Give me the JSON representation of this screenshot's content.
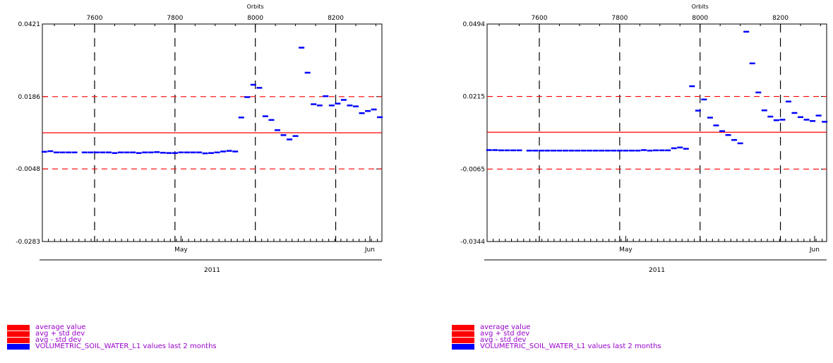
{
  "chart_data": [
    {
      "type": "scatter",
      "xlabel_top": "Orbits",
      "top_ticks": [
        "7600",
        "7800",
        "8000",
        "8200"
      ],
      "top_tick_values": [
        7600,
        7800,
        8000,
        8200
      ],
      "bottom_tick_labels": [
        "May",
        "Jun"
      ],
      "bottom_tick_values": [
        7815,
        8285
      ],
      "year_label": "2011",
      "xlim": [
        7470,
        8315
      ],
      "ylim": [
        -0.0283,
        0.0421
      ],
      "ytick_labels": [
        "0.0421",
        "0.0186",
        "-0.0048",
        "-0.0283"
      ],
      "ytick_values": [
        0.0421,
        0.0186,
        -0.0048,
        -0.0283
      ],
      "average": 0.0069,
      "avg_plus_std": 0.0186,
      "avg_minus_std": -0.0048,
      "series": [
        {
          "x": [
            7475,
            7490,
            7505,
            7520,
            7535,
            7550,
            7575,
            7590,
            7605,
            7620,
            7635,
            7650,
            7665,
            7680,
            7695,
            7710,
            7725,
            7740,
            7755,
            7770,
            7785,
            7800,
            7815,
            7830,
            7845,
            7860,
            7875,
            7890,
            7905,
            7920,
            7935,
            7950,
            7965,
            7980,
            7995,
            8010,
            8025,
            8040,
            8055,
            8070,
            8085,
            8100,
            8115,
            8130,
            8145,
            8160,
            8175,
            8190,
            8205,
            8220,
            8235,
            8250,
            8265,
            8280,
            8295,
            8310
          ],
          "y": [
            0.0008,
            0.001,
            0.0006,
            0.0006,
            0.0006,
            0.0006,
            0.0006,
            0.0006,
            0.0006,
            0.0006,
            0.0006,
            0.0004,
            0.0006,
            0.0006,
            0.0006,
            0.0004,
            0.0006,
            0.0006,
            0.0007,
            0.0005,
            0.0004,
            0.0004,
            0.0006,
            0.0006,
            0.0006,
            0.0006,
            0.0003,
            0.0004,
            0.0006,
            0.0009,
            0.0011,
            0.0009,
            0.0119,
            0.0185,
            0.0225,
            0.0215,
            0.0123,
            0.0111,
            0.0078,
            0.0062,
            0.0048,
            0.0059,
            0.0345,
            0.0264,
            0.0162,
            0.0158,
            0.0188,
            0.0158,
            0.0164,
            0.0176,
            0.0158,
            0.0155,
            0.0133,
            0.014,
            0.0145,
            0.012
          ]
        }
      ]
    },
    {
      "type": "scatter",
      "xlabel_top": "Orbits",
      "top_ticks": [
        "7600",
        "7800",
        "8000",
        "8200"
      ],
      "top_tick_values": [
        7600,
        7800,
        8000,
        8200
      ],
      "bottom_tick_labels": [
        "May",
        "Jun"
      ],
      "bottom_tick_values": [
        7815,
        8285
      ],
      "year_label": "2011",
      "xlim": [
        7470,
        8315
      ],
      "ylim": [
        -0.0344,
        0.0494
      ],
      "ytick_labels": [
        "0.0494",
        "0.0215",
        "-0.0065",
        "-0.0344"
      ],
      "ytick_values": [
        0.0494,
        0.0215,
        -0.0065,
        -0.0344
      ],
      "average": 0.0077,
      "avg_plus_std": 0.0215,
      "avg_minus_std": -0.0065,
      "series": [
        {
          "x": [
            7475,
            7490,
            7505,
            7520,
            7535,
            7550,
            7575,
            7590,
            7605,
            7620,
            7635,
            7650,
            7665,
            7680,
            7695,
            7710,
            7725,
            7740,
            7755,
            7770,
            7785,
            7800,
            7815,
            7830,
            7845,
            7860,
            7875,
            7890,
            7905,
            7920,
            7935,
            7950,
            7965,
            7980,
            7995,
            8010,
            8025,
            8040,
            8055,
            8070,
            8085,
            8100,
            8115,
            8130,
            8145,
            8160,
            8175,
            8190,
            8205,
            8220,
            8235,
            8250,
            8265,
            8280,
            8295,
            8310
          ],
          "y": [
            0.0009,
            0.0009,
            0.0008,
            0.0008,
            0.0008,
            0.0008,
            0.0007,
            0.0007,
            0.0007,
            0.0007,
            0.0007,
            0.0007,
            0.0007,
            0.0007,
            0.0007,
            0.0007,
            0.0007,
            0.0007,
            0.0007,
            0.0007,
            0.0007,
            0.0007,
            0.0007,
            0.0007,
            0.0007,
            0.0009,
            0.0007,
            0.0008,
            0.0008,
            0.0008,
            0.0016,
            0.0019,
            0.0014,
            0.0255,
            0.0161,
            0.0204,
            0.0134,
            0.0104,
            0.0082,
            0.0067,
            0.0048,
            0.0035,
            0.0465,
            0.0343,
            0.0231,
            0.0162,
            0.0138,
            0.0124,
            0.0126,
            0.0196,
            0.0152,
            0.0136,
            0.0126,
            0.0121,
            0.0142,
            0.0118
          ]
        }
      ]
    }
  ],
  "legend": [
    {
      "label": "average value",
      "color": "#ff0000"
    },
    {
      "label": "avg + std dev",
      "color": "#ff0000"
    },
    {
      "label": "avg - std dev",
      "color": "#ff0000"
    },
    {
      "label": "VOLUMETRIC_SOIL_WATER_L1 values last 2 months",
      "color": "#0000ff"
    }
  ],
  "colors": {
    "average": "#ff0000",
    "std": "#ff0000",
    "data": "#0000ff",
    "legend_text": "#9900cc"
  }
}
